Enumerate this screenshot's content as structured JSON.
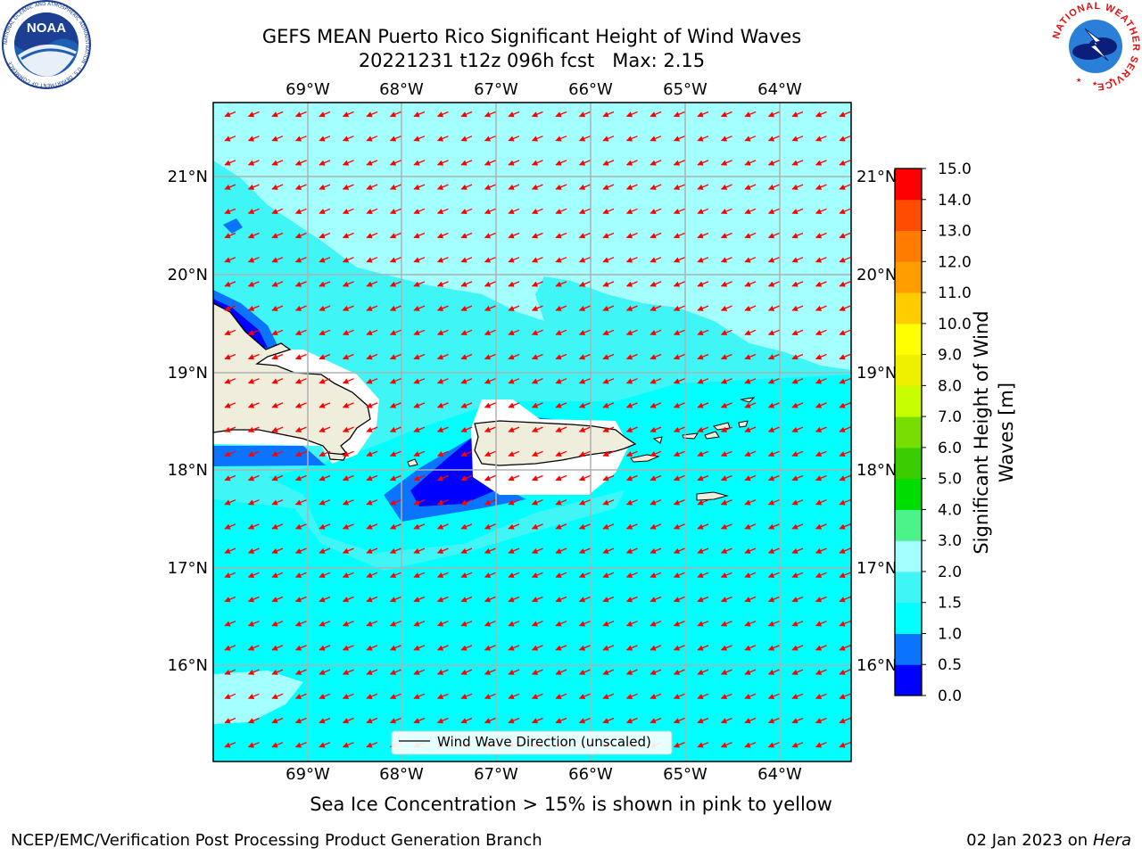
{
  "title": {
    "line1": "GEFS MEAN Puerto Rico Significant Height of Wind Waves",
    "line2": "20221231 t12z 096h fcst   Max: 2.15"
  },
  "map": {
    "lon_labels": [
      "69°W",
      "68°W",
      "67°W",
      "66°W",
      "65°W",
      "64°W"
    ],
    "lat_labels": [
      "21°N",
      "20°N",
      "19°N",
      "18°N",
      "17°N",
      "16°N"
    ],
    "legend_label": "Wind Wave Direction (unscaled)",
    "arrow_color": "#ff0000",
    "land_color": "#efeddc",
    "ocean_color": "#00ffff"
  },
  "colorbar": {
    "title_line1": "Significant Height of Wind",
    "title_line2": "Waves [m]",
    "ticks": [
      "0.0",
      "0.5",
      "1.0",
      "1.5",
      "2.0",
      "3.0",
      "4.0",
      "5.0",
      "6.0",
      "7.0",
      "8.0",
      "9.0",
      "10.0",
      "11.0",
      "12.0",
      "13.0",
      "14.0",
      "15.0"
    ],
    "colors": [
      "#0000ff",
      "#0a74ff",
      "#00ffff",
      "#40f5f5",
      "#a4ffff",
      "#4cf38a",
      "#00dd00",
      "#3ccd00",
      "#78dd00",
      "#c8ff00",
      "#eef000",
      "#ffff00",
      "#ffcc00",
      "#ff9c00",
      "#ff7c00",
      "#ff4c00",
      "#ff0000"
    ]
  },
  "logos": {
    "noaa_text": "NOAA",
    "noaa_ring": "NATIONAL OCEANIC AND ATMOSPHERIC ADMINISTRATION · U.S. DEPARTMENT OF COMMERCE",
    "nws_ring": "NATIONAL WEATHER SERVICE"
  },
  "caption": "Sea Ice Concentration > 15% is shown in pink to yellow",
  "footer": {
    "left": "NCEP/EMC/Verification Post Processing Product Generation Branch",
    "date": "02 Jan 2023 on ",
    "machine": "Hera"
  }
}
